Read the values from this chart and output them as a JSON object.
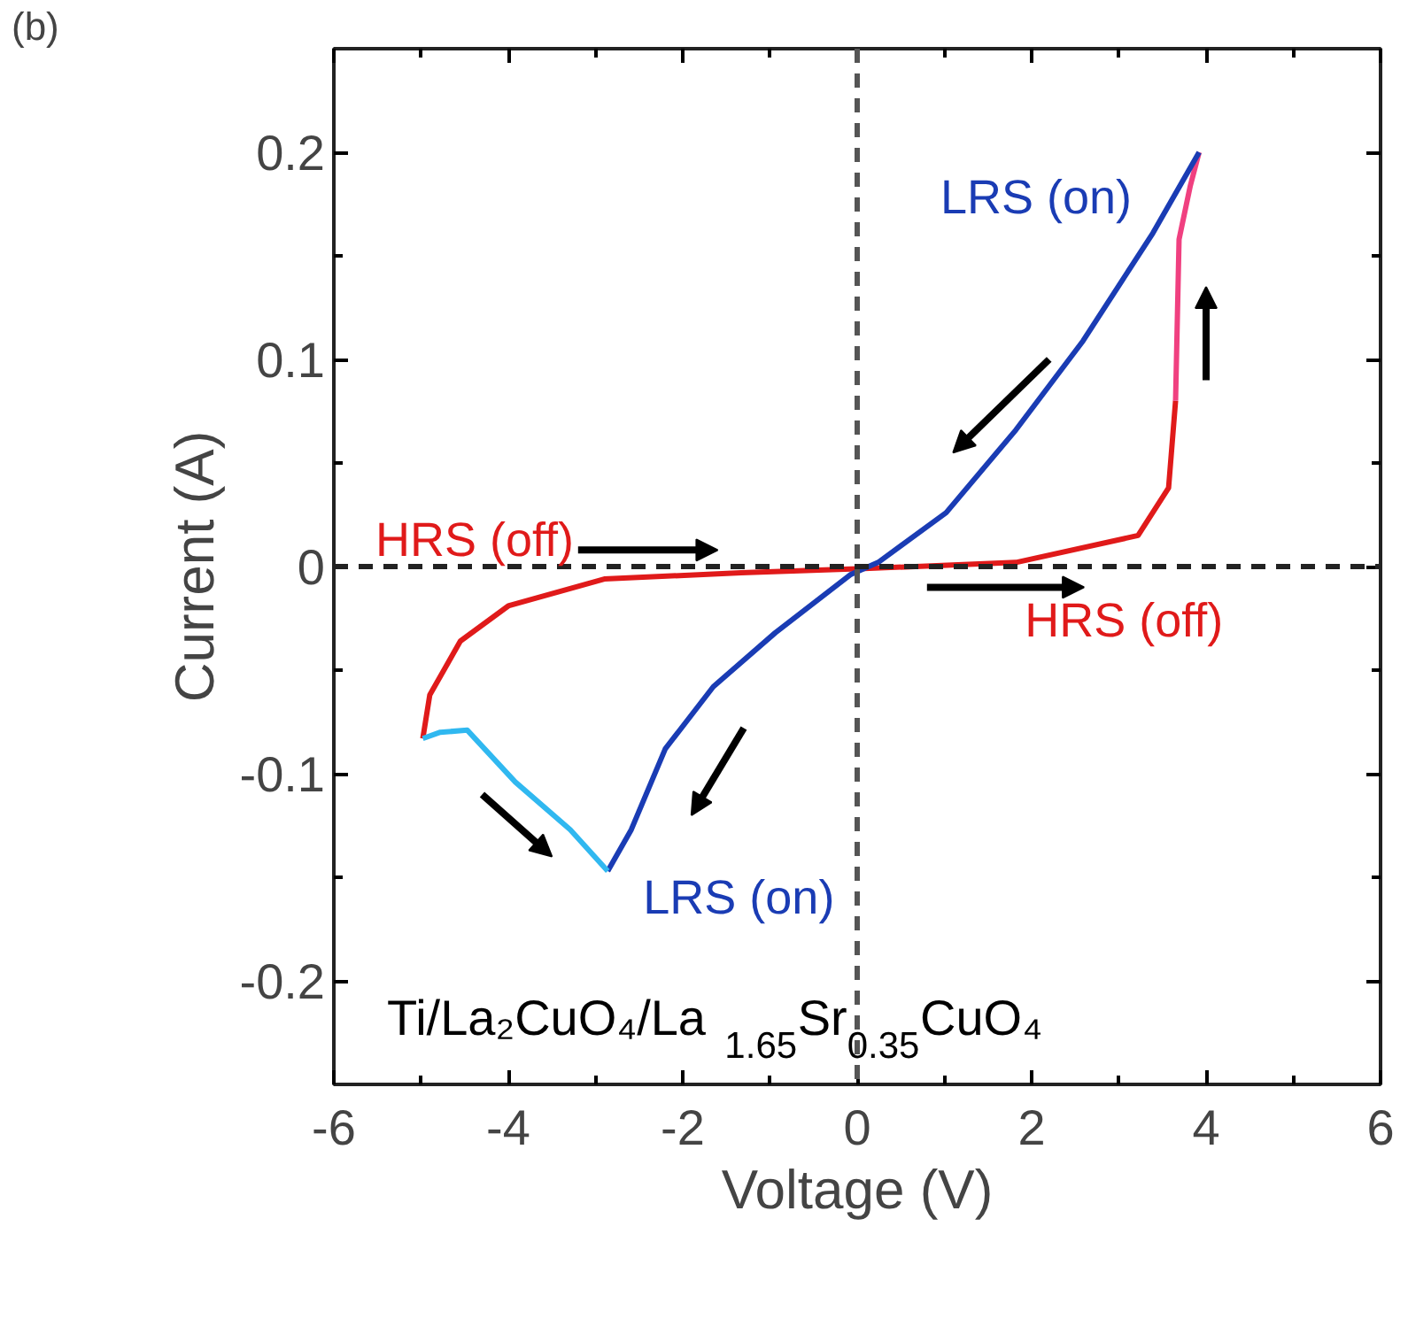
{
  "chart_data": {
    "type": "line",
    "title": "(b)",
    "xlabel": "Voltage (V)",
    "ylabel": "Current (A)",
    "xlim": [
      -6,
      6
    ],
    "ylim": [
      -0.25,
      0.25
    ],
    "xticks": [
      -6,
      {
        "value": -5,
        "label": null
      },
      -4,
      {
        "value": -3,
        "label": null
      },
      -2,
      {
        "value": -1,
        "label": null
      },
      0,
      {
        "value": 1,
        "label": null
      },
      2,
      {
        "value": 3,
        "label": null
      },
      4,
      {
        "value": 5,
        "label": null
      },
      6
    ],
    "yticks": [
      -0.2,
      {
        "value": -0.15,
        "label": null
      },
      -0.1,
      {
        "value": -0.05,
        "label": null
      },
      0,
      {
        "value": 0.05,
        "label": null
      },
      0.1,
      {
        "value": 0.15,
        "label": null
      },
      0.2
    ],
    "grid": false,
    "marker": "none",
    "line_style": "solid",
    "series": [
      {
        "name": "HRS (off)",
        "color": "#e01a1a",
        "x": [
          -4.98,
          -4.9,
          -4.55,
          -4.0,
          -2.9,
          -1.33,
          0.08,
          1.82,
          3.22,
          3.57,
          3.65
        ],
        "values": [
          -0.083,
          -0.062,
          -0.036,
          -0.019,
          -0.006,
          -0.003,
          -0.001,
          0.002,
          0.015,
          0.038,
          0.08
        ]
      },
      {
        "color": "#f04080",
        "x": [
          3.65,
          3.69,
          3.82,
          3.92
        ],
        "values": [
          0.08,
          0.158,
          0.184,
          0.2
        ]
      },
      {
        "name": "LRS (on)",
        "color": "#1a3cb4",
        "x": [
          3.92,
          3.39,
          2.59,
          1.82,
          1.02,
          0.24,
          -0.08,
          -0.94,
          -1.65,
          -2.2,
          -2.59,
          -2.86
        ],
        "values": [
          0.2,
          0.161,
          0.109,
          0.066,
          0.026,
          0.002,
          -0.004,
          -0.032,
          -0.058,
          -0.088,
          -0.127,
          -0.147
        ]
      },
      {
        "color": "#30b8f0",
        "x": [
          -2.86,
          -3.29,
          -3.92,
          -4.47,
          -4.78,
          -4.98
        ],
        "values": [
          -0.147,
          -0.127,
          -0.104,
          -0.079,
          -0.08,
          -0.083
        ]
      }
    ],
    "ref_lines": [
      {
        "axis": "x",
        "value": 0,
        "color": "#555555",
        "line_style": "dashed"
      },
      {
        "axis": "y",
        "value": 0,
        "color": "#222222",
        "line_style": "dashed"
      }
    ],
    "annotations": [
      "Ti/La₂CuO₄/La$_{1.65}$Sr$_{0.35}$CuO₄"
    ]
  }
}
